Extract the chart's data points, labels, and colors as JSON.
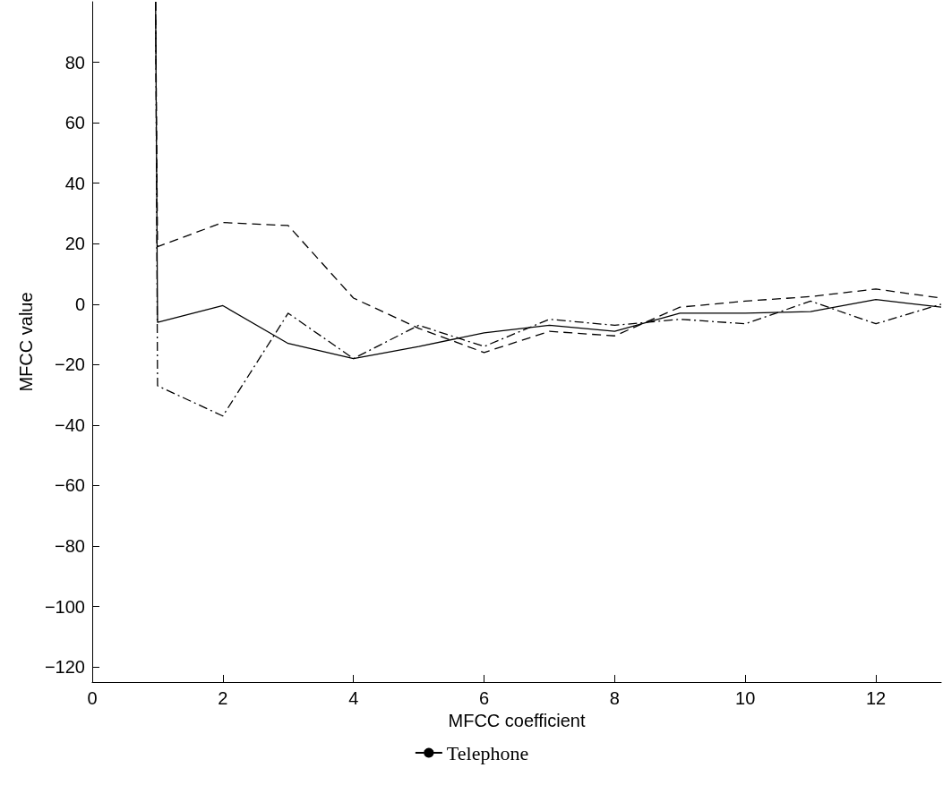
{
  "chart_data": {
    "type": "line",
    "xlabel": "MFCC coefficient",
    "ylabel": "MFCC value",
    "x": [
      0.97,
      1,
      2,
      3,
      4,
      5,
      6,
      7,
      8,
      9,
      10,
      11,
      12,
      13
    ],
    "series": [
      {
        "color": "#000000",
        "line_style": "solid",
        "values": [
          100,
          -6,
          -0.5,
          -13,
          -18,
          -14,
          -9.5,
          -7,
          -9,
          -3,
          -3,
          -2.5,
          1.5,
          -1
        ]
      },
      {
        "color": "#000000",
        "line_style": "dashed",
        "values": [
          100,
          19,
          27,
          26,
          2,
          -8,
          -16,
          -9,
          -10.5,
          -1,
          1,
          2.5,
          5,
          2
        ]
      },
      {
        "name": "Telephone",
        "color": "#000000",
        "line_style": "dashdot",
        "values": [
          100,
          -27,
          -37,
          -3,
          -18,
          -7,
          -14,
          -5,
          -7,
          -5,
          -6.5,
          1,
          -6.5,
          0
        ]
      }
    ],
    "xlim": [
      0,
      13
    ],
    "xticks": [
      0,
      2,
      4,
      6,
      8,
      10,
      12
    ],
    "ylim": [
      -125,
      100
    ],
    "yticks": [
      -120,
      -100,
      -80,
      -60,
      -40,
      -20,
      0,
      20,
      40,
      60,
      80
    ],
    "grid": false,
    "legend": "bottom",
    "marker": "none"
  }
}
